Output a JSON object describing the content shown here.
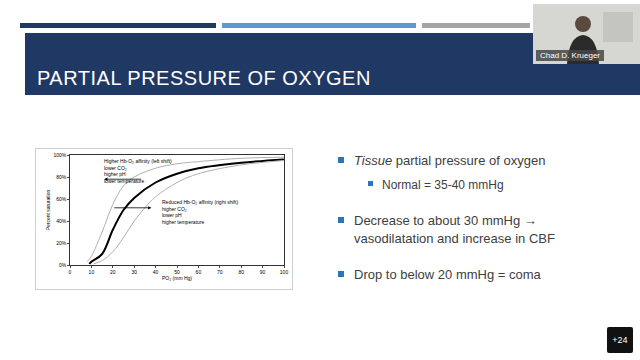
{
  "title": "PARTIAL PRESSURE OF OXYGEN",
  "presenter": "Chad D. Krueger",
  "badge": "+24",
  "bullets": [
    {
      "runs": [
        {
          "text": "Tissue",
          "italic": true
        },
        {
          "text": " partial pressure of oxygen",
          "italic": false
        }
      ],
      "sub": [
        "Normal = 35-40 mmHg"
      ]
    },
    {
      "runs": [
        {
          "text": "Decrease to about 30 mmHg → vasodilatation and increase in CBF",
          "italic": false
        }
      ]
    },
    {
      "runs": [
        {
          "text": "Drop to below 20 mmHg = coma",
          "italic": false
        }
      ]
    }
  ],
  "chart_data": {
    "type": "line",
    "x_label": "PO₂ (mm Hg)",
    "y_label": "Percent saturation",
    "xlim": [
      0,
      100
    ],
    "ylim": [
      0,
      100
    ],
    "xticks": [
      0,
      10,
      20,
      30,
      40,
      50,
      60,
      70,
      80,
      90,
      100
    ],
    "yticks": [
      {
        "value": 0,
        "label": "0%"
      },
      {
        "value": 20,
        "label": "20%"
      },
      {
        "value": 40,
        "label": "40%"
      },
      {
        "value": 60,
        "label": "60%"
      },
      {
        "value": 80,
        "label": "80%"
      },
      {
        "value": 100,
        "label": "100%"
      }
    ],
    "grid": false,
    "series": [
      {
        "color": "#b0b0b0",
        "x": [
          8,
          10,
          15,
          20,
          25,
          30,
          40,
          50,
          60,
          80,
          100
        ],
        "values": [
          3,
          8,
          30,
          55,
          72,
          80,
          88,
          92,
          94,
          97,
          98
        ]
      },
      {
        "color": "#000000",
        "x": [
          9,
          10,
          15,
          20,
          25,
          30,
          40,
          50,
          60,
          80,
          100
        ],
        "values": [
          1,
          3,
          10,
          32,
          50,
          61,
          75,
          83,
          88,
          93,
          96
        ]
      },
      {
        "color": "#b0b0b0",
        "x": [
          11,
          15,
          20,
          25,
          30,
          35,
          40,
          50,
          60,
          80,
          100
        ],
        "values": [
          1,
          4,
          12,
          25,
          40,
          52,
          62,
          75,
          83,
          91,
          95
        ]
      }
    ],
    "annotations": [
      {
        "lines": [
          "Higher Hb-O₂ affinity (left shift)",
          "lower CO₂",
          "higher pH",
          "lower temperature"
        ]
      },
      {
        "lines": [
          "Reduced Hb-O₂ affinity (right shift)",
          "higher CO₂",
          "lower pH",
          "higher temperature"
        ]
      }
    ]
  }
}
